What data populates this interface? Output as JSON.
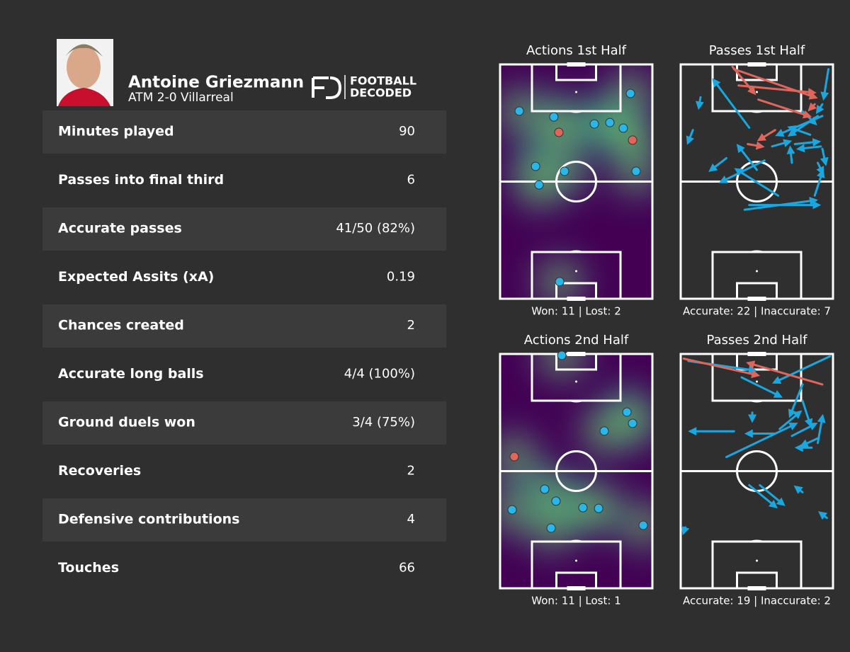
{
  "header": {
    "name": "Antoine Griezmann",
    "match": "ATM 2-0 Villarreal",
    "logo": [
      "FOOTBALL",
      "DECODED"
    ]
  },
  "table": {
    "rows": [
      [
        "Minutes played",
        "90"
      ],
      [
        "Passes into final third",
        "6"
      ],
      [
        "Accurate passes",
        "41/50 (82%)"
      ],
      [
        "Expected Assits (xA)",
        "0.19"
      ],
      [
        "Chances created",
        "2"
      ],
      [
        "Accurate long balls",
        "4/4 (100%)"
      ],
      [
        "Ground duels won",
        "3/4 (75%)"
      ],
      [
        "Recoveries",
        "2"
      ],
      [
        "Defensive contributions",
        "4"
      ],
      [
        "Touches",
        "66"
      ]
    ]
  },
  "pitches": [
    {
      "type": "actions",
      "title": "Actions 1st Half",
      "footer": "Won: 11 | Lost: 2",
      "xlim": [
        0,
        100
      ],
      "ylim": [
        0,
        100
      ],
      "series": [
        {
          "color": "#29b6e8",
          "points": [
            [
              12.6,
              19.9
            ],
            [
              35.3,
              22.4
            ],
            [
              85.6,
              12.4
            ],
            [
              61.9,
              25.4
            ],
            [
              72.1,
              24.8
            ],
            [
              80.9,
              27.2
            ],
            [
              23.3,
              43.5
            ],
            [
              42.3,
              45.6
            ],
            [
              25.6,
              51.4
            ],
            [
              89.3,
              45.6
            ],
            [
              39.1,
              92.7
            ]
          ]
        },
        {
          "color": "#e0665c",
          "points": [
            [
              38.6,
              29.0
            ],
            [
              87.0,
              32.3
            ]
          ]
        }
      ]
    },
    {
      "type": "passes",
      "title": "Passes 1st Half",
      "footer": "Accurate: 22 | Inaccurate: 7",
      "xlim": [
        0,
        100
      ],
      "ylim": [
        0,
        100
      ],
      "series": [
        {
          "color": "#1aa7e0",
          "arrows": [
            [
              45,
              27,
              22,
              7
            ],
            [
              97,
              2,
              94,
              14
            ],
            [
              13,
              14,
              12,
              18
            ],
            [
              8,
              28,
              5,
              33
            ],
            [
              80,
              20,
              88,
              25
            ],
            [
              93,
              17,
              90,
              20
            ],
            [
              90,
              22,
              72,
              30
            ],
            [
              93,
              22,
              64,
              30
            ],
            [
              85,
              30,
              72,
              27
            ],
            [
              60,
              35,
              71,
              33
            ],
            [
              75,
              34,
              90,
              33
            ],
            [
              92,
              35,
              78,
              36
            ],
            [
              93,
              36,
              95,
              42
            ],
            [
              90,
              42,
              93,
              46
            ],
            [
              50,
              45,
              38,
              35
            ],
            [
              55,
              41,
              27,
              50
            ],
            [
              30,
              40,
              20,
              45
            ],
            [
              64,
              56,
              37,
              45
            ],
            [
              88,
              56,
              93,
              46
            ],
            [
              42,
              62,
              88,
              58
            ],
            [
              45,
              60,
              90,
              60
            ],
            [
              73,
              42,
              72,
              36
            ]
          ]
        },
        {
          "color": "#e0665c",
          "arrows": [
            [
              35,
              2,
              88,
              14
            ],
            [
              38,
              9,
              87,
              12
            ],
            [
              51,
              15,
              84,
              22
            ],
            [
              34,
              1,
              48,
              12
            ],
            [
              62,
              28,
              52,
              32
            ],
            [
              44,
              34,
              53,
              35
            ],
            [
              88,
              17,
              85,
              19
            ]
          ]
        }
      ]
    },
    {
      "type": "actions",
      "title": "Actions 2nd Half",
      "footer": "Won: 11 | Lost: 1",
      "xlim": [
        0,
        100
      ],
      "ylim": [
        0,
        100
      ],
      "series": [
        {
          "color": "#29b6e8",
          "points": [
            [
              40.5,
              0.6
            ],
            [
              83.3,
              24.8
            ],
            [
              87.0,
              29.6
            ],
            [
              68.4,
              32.9
            ],
            [
              29.3,
              57.7
            ],
            [
              36.7,
              62.8
            ],
            [
              7.9,
              66.5
            ],
            [
              54.4,
              65.6
            ],
            [
              64.7,
              65.9
            ],
            [
              33.5,
              74.3
            ],
            [
              94.0,
              73.1
            ]
          ]
        },
        {
          "color": "#e0665c",
          "points": [
            [
              9.3,
              43.8
            ]
          ]
        }
      ]
    },
    {
      "type": "passes",
      "title": "Passes 2nd Half",
      "footer": "Accurate: 19 | Inaccurate: 2",
      "xlim": [
        0,
        100
      ],
      "ylim": [
        0,
        100
      ],
      "series": [
        {
          "color": "#1aa7e0",
          "arrows": [
            [
              98,
              1,
              62,
              12
            ],
            [
              5,
              3,
              48,
              7
            ],
            [
              40,
              10,
              65,
              18
            ],
            [
              80,
              13,
              72,
              26
            ],
            [
              80,
              20,
              85,
              30
            ],
            [
              47,
              25,
              47,
              28
            ],
            [
              35,
              33,
              7,
              33
            ],
            [
              62,
              34,
              44,
              34
            ],
            [
              73,
              35,
              88,
              30
            ],
            [
              65,
              32,
              78,
              25
            ],
            [
              30,
              44,
              75,
              30
            ],
            [
              90,
              38,
              93,
              27
            ],
            [
              86,
              40,
              77,
              40
            ],
            [
              90,
              36,
              80,
              39
            ],
            [
              45,
              56,
              62,
              65
            ],
            [
              52,
              56,
              67,
              64
            ],
            [
              80,
              59,
              76,
              57
            ],
            [
              96,
              70,
              92,
              68
            ],
            [
              3,
              74,
              2,
              76
            ]
          ]
        },
        {
          "color": "#e0665c",
          "arrows": [
            [
              2,
              2,
              50,
              9
            ],
            [
              93,
              13,
              45,
              4
            ]
          ]
        }
      ]
    }
  ]
}
